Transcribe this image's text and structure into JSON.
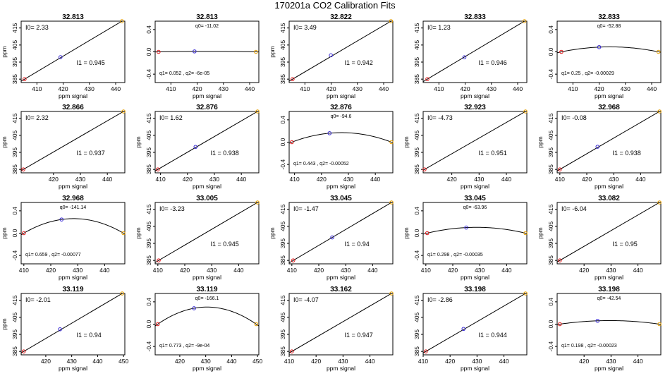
{
  "title": "170201a   CO2 Calibration Fits",
  "colors": {
    "axis": "#000000",
    "fit_line": "#000000",
    "point_low": "#e31a1c",
    "point_mid": "#3a2bd6",
    "point_high": "#e69f00"
  },
  "chart_data": [
    {
      "type": "scatter",
      "subtype": "linear-fit",
      "title": "32.813",
      "xlabel": "ppm signal",
      "ylabel": "ppm",
      "xticks": [
        410,
        420,
        430,
        440
      ],
      "yticks": [
        385,
        395,
        405,
        415
      ],
      "xlim": [
        404,
        443.5
      ],
      "ylim": [
        383,
        419
      ],
      "points": [
        {
          "x": 405.3,
          "y": 385
        },
        {
          "x": 419,
          "y": 397.9
        },
        {
          "x": 442.4,
          "y": 419
        }
      ],
      "labels": [
        "I0=  2.33",
        "I1 =  0.945"
      ]
    },
    {
      "type": "scatter",
      "subtype": "residual-fit",
      "title": "32.813",
      "xlabel": "ppm signal",
      "ylabel": "",
      "xticks": [
        410,
        420,
        430,
        440
      ],
      "yticks": [
        -0.4,
        0.0,
        0.4
      ],
      "xlim": [
        404,
        443.5
      ],
      "ylim": [
        -0.55,
        0.55
      ],
      "points": [
        {
          "x": 405.3,
          "y": 0
        },
        {
          "x": 419,
          "y": 0.008
        },
        {
          "x": 442.4,
          "y": 0
        }
      ],
      "labels": [
        "q0= -11.02",
        "q1= 0.052 , q2= -6e-05"
      ]
    },
    {
      "type": "scatter",
      "subtype": "linear-fit",
      "title": "32.822",
      "xlabel": "ppm signal",
      "ylabel": "ppm",
      "xticks": [
        410,
        420,
        430,
        440
      ],
      "yticks": [
        385,
        395,
        405,
        415
      ],
      "xlim": [
        404,
        443.5
      ],
      "ylim": [
        383,
        419
      ],
      "points": [
        {
          "x": 405.3,
          "y": 385
        },
        {
          "x": 419.9,
          "y": 399
        },
        {
          "x": 442.8,
          "y": 419
        }
      ],
      "labels": [
        "I0=  3.49",
        "I1 =  0.942"
      ]
    },
    {
      "type": "scatter",
      "subtype": "linear-fit",
      "title": "32.833",
      "xlabel": "ppm signal",
      "ylabel": "",
      "xticks": [
        410,
        420,
        430,
        440
      ],
      "yticks": [
        385,
        395,
        405,
        415
      ],
      "xlim": [
        404,
        443.5
      ],
      "ylim": [
        383,
        419
      ],
      "points": [
        {
          "x": 405.6,
          "y": 385
        },
        {
          "x": 419.7,
          "y": 397.8
        },
        {
          "x": 442.6,
          "y": 419
        }
      ],
      "labels": [
        "I0=  1.23",
        "I1 =  0.946"
      ]
    },
    {
      "type": "scatter",
      "subtype": "residual-fit",
      "title": "32.833",
      "xlabel": "ppm signal",
      "ylabel": "",
      "xticks": [
        410,
        420,
        430,
        440
      ],
      "yticks": [
        -0.4,
        0.0,
        0.4
      ],
      "xlim": [
        404,
        443.5
      ],
      "ylim": [
        -0.55,
        0.55
      ],
      "points": [
        {
          "x": 405.6,
          "y": 0
        },
        {
          "x": 420,
          "y": 0.085
        },
        {
          "x": 442.6,
          "y": 0
        }
      ],
      "labels": [
        "q0= -52.88",
        "q1= 0.25 , q2= -0.00029"
      ]
    },
    {
      "type": "scatter",
      "subtype": "linear-fit",
      "title": "32.866",
      "xlabel": "ppm signal",
      "ylabel": "ppm",
      "xticks": [
        420,
        430,
        440
      ],
      "yticks": [
        385,
        395,
        405,
        415
      ],
      "xlim": [
        408,
        446.5
      ],
      "ylim": [
        383,
        419
      ],
      "points": [
        {
          "x": 408.8,
          "y": 385
        },
        {
          "x": 446,
          "y": 419
        }
      ],
      "labels": [
        "I0=  2.32",
        "I1 =  0.937"
      ]
    },
    {
      "type": "scatter",
      "subtype": "linear-fit",
      "title": "32.876",
      "xlabel": "ppm signal",
      "ylabel": "ppm",
      "xticks": [
        410,
        420,
        430,
        440
      ],
      "yticks": [
        385,
        395,
        405,
        415
      ],
      "xlim": [
        408,
        446.5
      ],
      "ylim": [
        383,
        419
      ],
      "points": [
        {
          "x": 409,
          "y": 385
        },
        {
          "x": 423,
          "y": 398.2
        },
        {
          "x": 446,
          "y": 419
        }
      ],
      "labels": [
        "I0=  1.62",
        "I1 =  0.938"
      ]
    },
    {
      "type": "scatter",
      "subtype": "residual-fit",
      "title": "32.876",
      "xlabel": "ppm signal",
      "ylabel": "",
      "xticks": [
        410,
        420,
        430,
        440
      ],
      "yticks": [
        -0.4,
        0.0,
        0.4
      ],
      "xlim": [
        408,
        446.5
      ],
      "ylim": [
        -0.55,
        0.55
      ],
      "points": [
        {
          "x": 409,
          "y": 0
        },
        {
          "x": 423,
          "y": 0.16
        },
        {
          "x": 446,
          "y": 0
        }
      ],
      "labels": [
        "q0= -94.6",
        "q1= 0.443 , q2= -0.00052"
      ]
    },
    {
      "type": "scatter",
      "subtype": "linear-fit",
      "title": "32.923",
      "xlabel": "ppm signal",
      "ylabel": "ppm",
      "xticks": [
        420,
        430,
        440
      ],
      "yticks": [
        385,
        395,
        405,
        415
      ],
      "xlim": [
        409.5,
        447.5
      ],
      "ylim": [
        383,
        419
      ],
      "points": [
        {
          "x": 410,
          "y": 385
        },
        {
          "x": 447,
          "y": 419
        }
      ],
      "labels": [
        "I0=  -4.73",
        "I1 =  0.951"
      ]
    },
    {
      "type": "scatter",
      "subtype": "linear-fit",
      "title": "32.968",
      "xlabel": "ppm signal",
      "ylabel": "ppm",
      "xticks": [
        410,
        420,
        430,
        440
      ],
      "yticks": [
        385,
        395,
        405,
        415
      ],
      "xlim": [
        409,
        447.5
      ],
      "ylim": [
        383,
        419
      ],
      "points": [
        {
          "x": 410,
          "y": 385
        },
        {
          "x": 424,
          "y": 398.3
        },
        {
          "x": 447,
          "y": 419
        }
      ],
      "labels": [
        "I0=  -0.08",
        "I1 =  0.938"
      ]
    },
    {
      "type": "scatter",
      "subtype": "residual-fit",
      "title": "32.968",
      "xlabel": "ppm signal",
      "ylabel": "ppm",
      "xticks": [
        410,
        420,
        430,
        440
      ],
      "yticks": [
        -0.4,
        0.0,
        0.4
      ],
      "xlim": [
        409,
        447.5
      ],
      "ylim": [
        -0.55,
        0.55
      ],
      "points": [
        {
          "x": 410,
          "y": 0
        },
        {
          "x": 424,
          "y": 0.245
        },
        {
          "x": 447,
          "y": 0
        }
      ],
      "labels": [
        "q0= -141.14",
        "q1= 0.659 , q2= -0.00077"
      ]
    },
    {
      "type": "scatter",
      "subtype": "linear-fit",
      "title": "33.005",
      "xlabel": "ppm signal",
      "ylabel": "ppm",
      "xticks": [
        410,
        420,
        430,
        440
      ],
      "yticks": [
        385,
        395,
        405,
        415
      ],
      "xlim": [
        409,
        447.5
      ],
      "ylim": [
        383,
        419
      ],
      "points": [
        {
          "x": 410.3,
          "y": 385
        },
        {
          "x": 447,
          "y": 419
        }
      ],
      "labels": [
        "I0=  -3.23",
        "I1 =  0.945"
      ]
    },
    {
      "type": "scatter",
      "subtype": "linear-fit",
      "title": "33.045",
      "xlabel": "ppm signal",
      "ylabel": "ppm",
      "xticks": [
        410,
        420,
        430,
        440
      ],
      "yticks": [
        385,
        395,
        405,
        415
      ],
      "xlim": [
        409,
        447.5
      ],
      "ylim": [
        383,
        419
      ],
      "points": [
        {
          "x": 410.5,
          "y": 385
        },
        {
          "x": 425,
          "y": 398.5
        },
        {
          "x": 447,
          "y": 419
        }
      ],
      "labels": [
        "I0=  -1.47",
        "I1 =  0.94"
      ]
    },
    {
      "type": "scatter",
      "subtype": "residual-fit",
      "title": "33.045",
      "xlabel": "ppm signal",
      "ylabel": "ppm",
      "xticks": [
        410,
        420,
        430,
        440
      ],
      "yticks": [
        -0.4,
        0.0,
        0.4
      ],
      "xlim": [
        409,
        447.5
      ],
      "ylim": [
        -0.55,
        0.55
      ],
      "points": [
        {
          "x": 410.5,
          "y": 0
        },
        {
          "x": 425,
          "y": 0.1
        },
        {
          "x": 447,
          "y": 0
        }
      ],
      "labels": [
        "q0= -63.96",
        "q1= 0.298 , q2= -0.00035"
      ]
    },
    {
      "type": "scatter",
      "subtype": "linear-fit",
      "title": "33.082",
      "xlabel": "ppm signal",
      "ylabel": "ppm",
      "xticks": [
        420,
        430,
        440
      ],
      "yticks": [
        385,
        395,
        405,
        415
      ],
      "xlim": [
        410,
        448.5
      ],
      "ylim": [
        383,
        419
      ],
      "points": [
        {
          "x": 411,
          "y": 385
        },
        {
          "x": 448,
          "y": 419
        }
      ],
      "labels": [
        "I0=  -6.04",
        "I1 =  0.95"
      ]
    },
    {
      "type": "scatter",
      "subtype": "linear-fit",
      "title": "33.119",
      "xlabel": "ppm signal",
      "ylabel": "ppm",
      "xticks": [
        420,
        430,
        440,
        450
      ],
      "yticks": [
        385,
        395,
        405,
        415
      ],
      "xlim": [
        410.5,
        450.5
      ],
      "ylim": [
        383,
        419
      ],
      "points": [
        {
          "x": 411.5,
          "y": 385
        },
        {
          "x": 425.5,
          "y": 398
        },
        {
          "x": 449.5,
          "y": 419
        }
      ],
      "labels": [
        "I0=  -2.01",
        "I1 =  0.94"
      ]
    },
    {
      "type": "scatter",
      "subtype": "residual-fit",
      "title": "33.119",
      "xlabel": "ppm signal",
      "ylabel": "",
      "xticks": [
        420,
        430,
        440,
        450
      ],
      "yticks": [
        -0.4,
        0.0,
        0.4
      ],
      "xlim": [
        410.5,
        450.5
      ],
      "ylim": [
        -0.55,
        0.55
      ],
      "points": [
        {
          "x": 411.5,
          "y": 0
        },
        {
          "x": 425.5,
          "y": 0.285
        },
        {
          "x": 449.5,
          "y": 0
        }
      ],
      "labels": [
        "q0= -166.1",
        "q1= 0.773 , q2= -9e-04"
      ]
    },
    {
      "type": "scatter",
      "subtype": "linear-fit",
      "title": "33.162",
      "xlabel": "ppm signal",
      "ylabel": "",
      "xticks": [
        410,
        420,
        430,
        440
      ],
      "yticks": [
        385,
        395,
        405,
        415
      ],
      "xlim": [
        410,
        448.5
      ],
      "ylim": [
        383,
        419
      ],
      "points": [
        {
          "x": 411,
          "y": 385
        },
        {
          "x": 448,
          "y": 419
        }
      ],
      "labels": [
        "I0=  -4.07",
        "I1 =  0.947"
      ]
    },
    {
      "type": "scatter",
      "subtype": "linear-fit",
      "title": "33.198",
      "xlabel": "ppm signal",
      "ylabel": "",
      "xticks": [
        410,
        420,
        430,
        440
      ],
      "yticks": [
        385,
        395,
        405,
        415
      ],
      "xlim": [
        410,
        448.5
      ],
      "ylim": [
        383,
        419
      ],
      "points": [
        {
          "x": 411,
          "y": 385
        },
        {
          "x": 425,
          "y": 398.2
        },
        {
          "x": 448,
          "y": 419
        }
      ],
      "labels": [
        "I0=  -2.86",
        "I1 =  0.944"
      ]
    },
    {
      "type": "scatter",
      "subtype": "residual-fit",
      "title": "33.198",
      "xlabel": "ppm signal",
      "ylabel": "",
      "xticks": [
        420,
        430,
        440
      ],
      "yticks": [
        -0.4,
        0.0,
        0.4
      ],
      "xlim": [
        410,
        448.5
      ],
      "ylim": [
        -0.55,
        0.55
      ],
      "points": [
        {
          "x": 411,
          "y": 0
        },
        {
          "x": 425,
          "y": 0.06
        },
        {
          "x": 448,
          "y": 0
        }
      ],
      "labels": [
        "q0= -42.54",
        "q1= 0.198 , q2= -0.00023"
      ]
    }
  ]
}
